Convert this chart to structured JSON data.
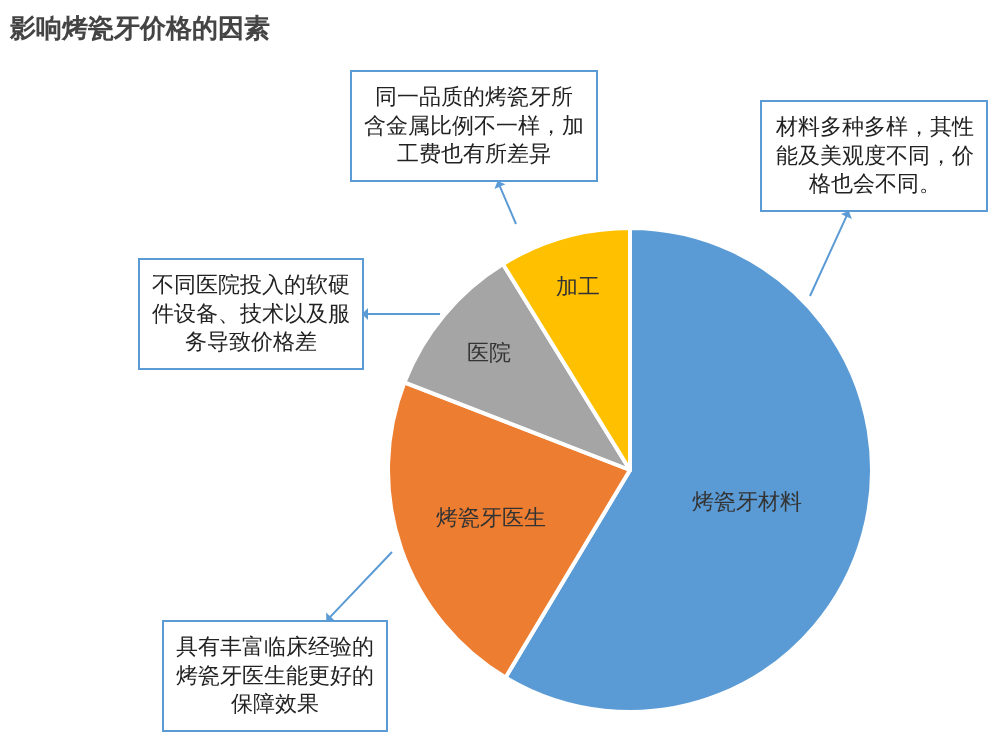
{
  "chart_data": {
    "type": "pie",
    "title": "影响烤瓷牙价格的因素",
    "categories": [
      "烤瓷牙材料",
      "烤瓷牙医生",
      "医院",
      "加工"
    ],
    "values": [
      58.6,
      22.3,
      10.3,
      8.8
    ],
    "colors": [
      "#5b9bd5",
      "#ed7d31",
      "#a5a5a5",
      "#ffc000"
    ],
    "legend": false,
    "annotations": [
      "材料多种多样，其性能及美观度不同，价格也会不同。",
      "具有丰富临床经验的烤瓷牙医生能更好的保障效果",
      "不同医院投入的软硬件设备、技术以及服务导致价格差",
      "同一品质的烤瓷牙所含金属比例不一样，加工费也有所差异"
    ]
  }
}
